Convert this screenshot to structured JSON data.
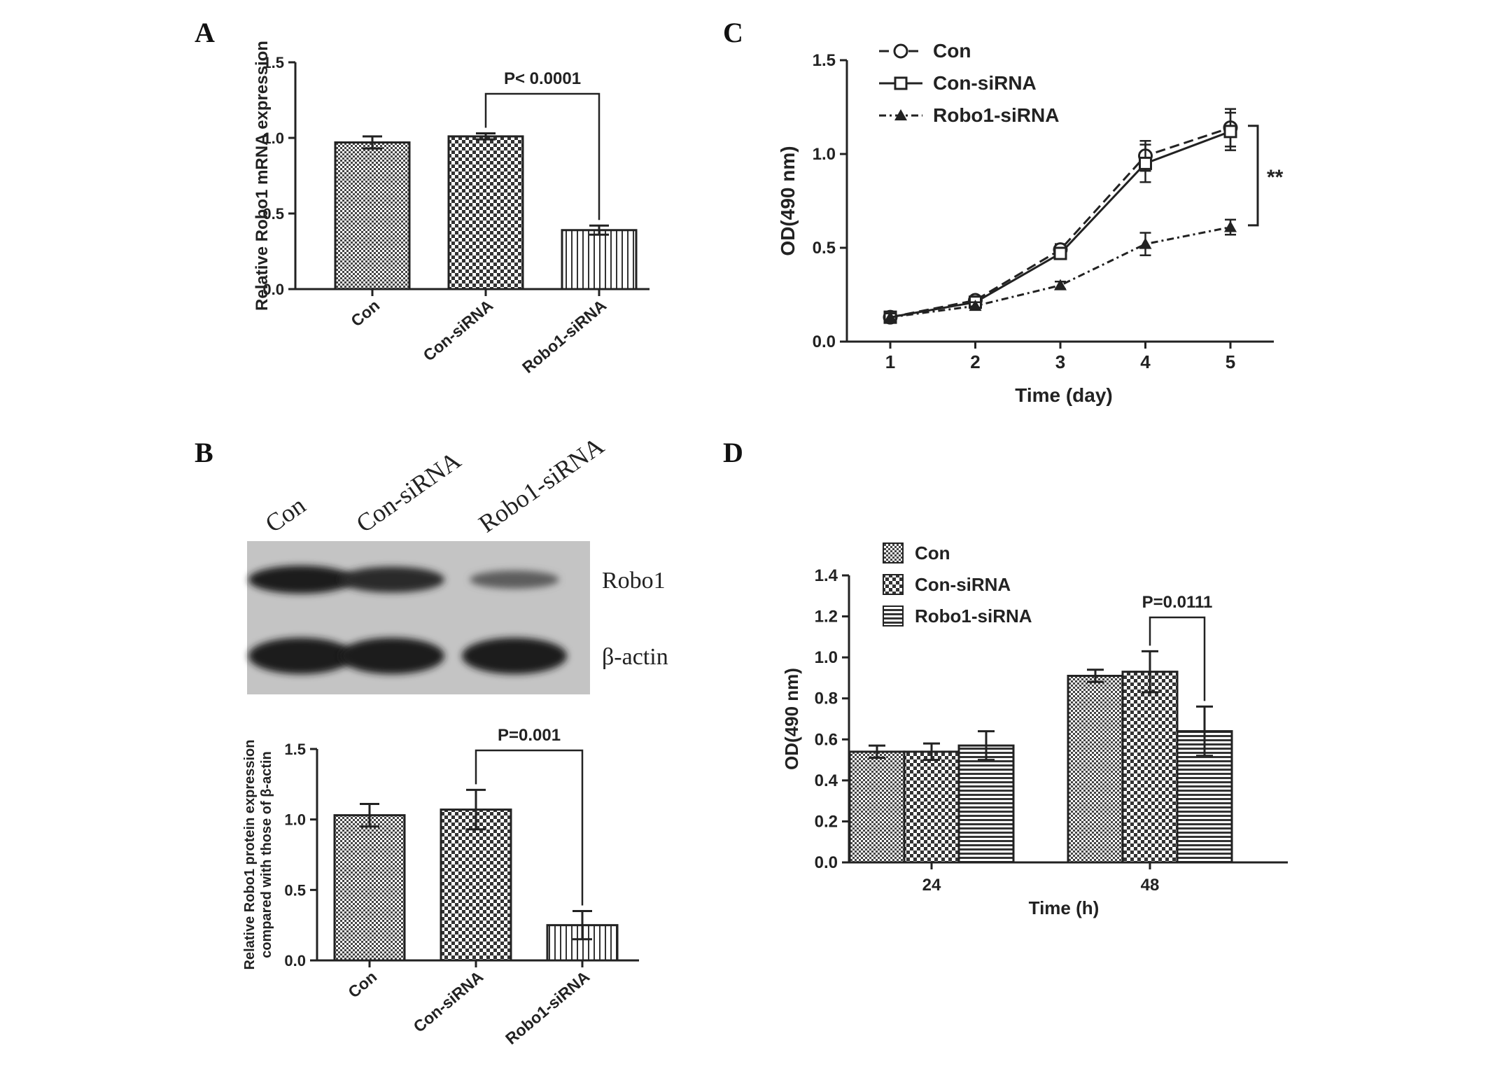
{
  "panels": {
    "a": "A",
    "b": "B",
    "c": "C",
    "d": "D"
  },
  "colors": {
    "ink": "#222222",
    "bar_fill": "#555555",
    "background": "#ffffff"
  },
  "chart_data": [
    {
      "panel": "A",
      "type": "bar",
      "title": "",
      "xlabel": "",
      "ylabel": "Relative Robo1 mRNA expression",
      "ylim": [
        0,
        1.5
      ],
      "yticks": [
        "0.0",
        "0.5",
        "1.0",
        "1.5"
      ],
      "categories": [
        "Con",
        "Con-siRNA",
        "Robo1-siRNA"
      ],
      "values": [
        0.97,
        1.01,
        0.39
      ],
      "errors": [
        0.04,
        0.02,
        0.03
      ],
      "patterns": [
        "fine-checker",
        "checker",
        "vertical-stripes"
      ],
      "annotation": {
        "text": "P< 0.0001",
        "from": "Con-siRNA",
        "to": "Robo1-siRNA"
      }
    },
    {
      "panel": "B",
      "type": "bar",
      "title": "",
      "xlabel": "",
      "ylabel_lines": [
        "Relative Robo1 protein expression",
        "compared with those of β-actin"
      ],
      "ylim": [
        0,
        1.5
      ],
      "yticks": [
        "0.0",
        "0.5",
        "1.0",
        "1.5"
      ],
      "categories": [
        "Con",
        "Con-siRNA",
        "Robo1-siRNA"
      ],
      "values": [
        1.03,
        1.07,
        0.25
      ],
      "errors": [
        0.08,
        0.14,
        0.1
      ],
      "patterns": [
        "fine-checker",
        "checker",
        "vertical-stripes"
      ],
      "annotation": {
        "text": "P=0.001",
        "from": "Con-siRNA",
        "to": "Robo1-siRNA"
      },
      "blot": {
        "lanes": [
          "Con",
          "Con-siRNA",
          "Robo1-siRNA"
        ],
        "rows": [
          {
            "label": "Robo1",
            "intensities": [
              1.0,
              0.85,
              0.3
            ]
          },
          {
            "label": "β-actin",
            "intensities": [
              1.0,
              1.0,
              1.0
            ]
          }
        ]
      }
    },
    {
      "panel": "C",
      "type": "line",
      "title": "",
      "xlabel": "Time (day)",
      "ylabel": "OD(490 nm)",
      "x": [
        1,
        2,
        3,
        4,
        5
      ],
      "xticks": [
        "1",
        "2",
        "3",
        "4",
        "5"
      ],
      "ylim": [
        0,
        1.5
      ],
      "yticks": [
        "0.0",
        "0.5",
        "1.0",
        "1.5"
      ],
      "legend_position": "top-left",
      "series": [
        {
          "name": "Con",
          "values": [
            0.13,
            0.22,
            0.49,
            0.99,
            1.14
          ],
          "errors": [
            0.02,
            0.02,
            0.03,
            0.08,
            0.1
          ],
          "marker": "circle",
          "dash": "dashed"
        },
        {
          "name": "Con-siRNA",
          "values": [
            0.13,
            0.21,
            0.47,
            0.95,
            1.12
          ],
          "errors": [
            0.02,
            0.02,
            0.03,
            0.1,
            0.1
          ],
          "marker": "square",
          "dash": "solid"
        },
        {
          "name": "Robo1-siRNA",
          "values": [
            0.13,
            0.19,
            0.3,
            0.52,
            0.61
          ],
          "errors": [
            0.02,
            0.02,
            0.02,
            0.06,
            0.04
          ],
          "marker": "triangle",
          "dash": "dashdot"
        }
      ],
      "annotation": {
        "text": "**"
      }
    },
    {
      "panel": "D",
      "type": "bar",
      "title": "",
      "xlabel": "Time (h)",
      "ylabel": "OD(490 nm)",
      "categories": [
        "24",
        "48"
      ],
      "ylim": [
        0,
        1.4
      ],
      "yticks": [
        "0.0",
        "0.2",
        "0.4",
        "0.6",
        "0.8",
        "1.0",
        "1.2",
        "1.4"
      ],
      "legend_position": "top-left",
      "series": [
        {
          "name": "Con",
          "values": [
            0.54,
            0.91
          ],
          "errors": [
            0.03,
            0.03
          ],
          "pattern": "fine-checker"
        },
        {
          "name": "Con-siRNA",
          "values": [
            0.54,
            0.93
          ],
          "errors": [
            0.04,
            0.1
          ],
          "pattern": "checker"
        },
        {
          "name": "Robo1-siRNA",
          "values": [
            0.57,
            0.64
          ],
          "errors": [
            0.07,
            0.12
          ],
          "pattern": "horizontal-stripes"
        }
      ],
      "annotation": {
        "text": "P=0.0111",
        "group": "48",
        "from": "Con-siRNA",
        "to": "Robo1-siRNA"
      }
    }
  ]
}
